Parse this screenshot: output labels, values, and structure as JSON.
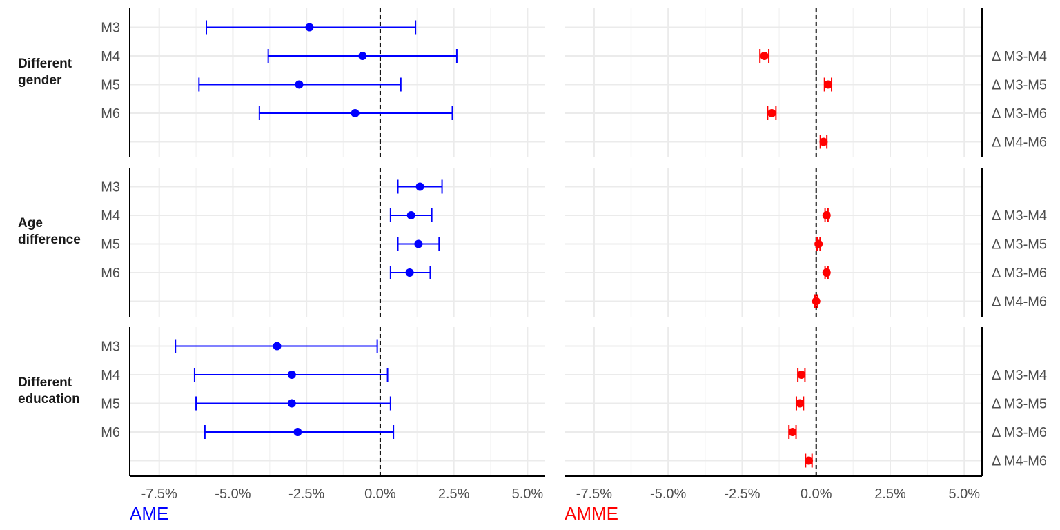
{
  "chart_data": {
    "type": "forest",
    "rows": [
      "Different gender",
      "Age difference",
      "Different education"
    ],
    "panels": [
      {
        "name": "AME",
        "color": "#0000ff",
        "title": "AME",
        "xlim": [
          -8.5,
          5.6
        ],
        "x_ticks": [
          -7.5,
          -5.0,
          -2.5,
          0.0,
          2.5,
          5.0
        ],
        "x_tick_labels": [
          "-7.5%",
          "-5.0%",
          "-2.5%",
          "0.0%",
          "2.5%",
          "5.0%"
        ],
        "y_labels": [
          "M3",
          "M4",
          "M5",
          "M6",
          ""
        ],
        "groups": [
          {
            "label": "Different gender",
            "points": [
              {
                "label": "M3",
                "est": -2.4,
                "lo": -5.9,
                "hi": 1.2
              },
              {
                "label": "M4",
                "est": -0.6,
                "lo": -3.8,
                "hi": 2.6
              },
              {
                "label": "M5",
                "est": -2.75,
                "lo": -6.15,
                "hi": 0.7
              },
              {
                "label": "M6",
                "est": -0.85,
                "lo": -4.1,
                "hi": 2.45
              }
            ]
          },
          {
            "label": "Age difference",
            "points": [
              {
                "label": "M3",
                "est": 1.35,
                "lo": 0.6,
                "hi": 2.1
              },
              {
                "label": "M4",
                "est": 1.05,
                "lo": 0.35,
                "hi": 1.75
              },
              {
                "label": "M5",
                "est": 1.3,
                "lo": 0.6,
                "hi": 2.0
              },
              {
                "label": "M6",
                "est": 1.0,
                "lo": 0.35,
                "hi": 1.7
              }
            ]
          },
          {
            "label": "Different education",
            "points": [
              {
                "label": "M3",
                "est": -3.5,
                "lo": -6.95,
                "hi": -0.1
              },
              {
                "label": "M4",
                "est": -3.0,
                "lo": -6.3,
                "hi": 0.25
              },
              {
                "label": "M5",
                "est": -3.0,
                "lo": -6.25,
                "hi": 0.35
              },
              {
                "label": "M6",
                "est": -2.8,
                "lo": -5.95,
                "hi": 0.45
              }
            ]
          }
        ]
      },
      {
        "name": "AMME",
        "color": "#ff0000",
        "title": "AMME",
        "xlim": [
          -8.5,
          5.6
        ],
        "x_ticks": [
          -7.5,
          -5.0,
          -2.5,
          0.0,
          2.5,
          5.0
        ],
        "x_tick_labels": [
          "-7.5%",
          "-5.0%",
          "-2.5%",
          "0.0%",
          "2.5%",
          "5.0%"
        ],
        "y_labels": [
          "",
          "Δ M3-M4",
          "Δ M3-M5",
          "Δ M3-M6",
          "Δ M4-M6"
        ],
        "groups": [
          {
            "label": "Different gender",
            "points": [
              {
                "label": "Δ M3-M4",
                "est": -1.75,
                "lo": -1.9,
                "hi": -1.6
              },
              {
                "label": "Δ M3-M5",
                "est": 0.4,
                "lo": 0.28,
                "hi": 0.52
              },
              {
                "label": "Δ M3-M6",
                "est": -1.5,
                "lo": -1.64,
                "hi": -1.36
              },
              {
                "label": "Δ M4-M6",
                "est": 0.25,
                "lo": 0.14,
                "hi": 0.36
              }
            ]
          },
          {
            "label": "Age difference",
            "points": [
              {
                "label": "Δ M3-M4",
                "est": 0.35,
                "lo": 0.3,
                "hi": 0.4
              },
              {
                "label": "Δ M3-M5",
                "est": 0.08,
                "lo": 0.03,
                "hi": 0.13
              },
              {
                "label": "Δ M3-M6",
                "est": 0.35,
                "lo": 0.3,
                "hi": 0.4
              },
              {
                "label": "Δ M4-M6",
                "est": 0.0,
                "lo": -0.04,
                "hi": 0.04
              }
            ]
          },
          {
            "label": "Different education",
            "points": [
              {
                "label": "Δ M3-M4",
                "est": -0.5,
                "lo": -0.62,
                "hi": -0.38
              },
              {
                "label": "Δ M3-M5",
                "est": -0.55,
                "lo": -0.67,
                "hi": -0.43
              },
              {
                "label": "Δ M3-M6",
                "est": -0.8,
                "lo": -0.92,
                "hi": -0.68
              },
              {
                "label": "Δ M4-M6",
                "est": -0.25,
                "lo": -0.36,
                "hi": -0.14
              }
            ]
          }
        ]
      }
    ],
    "reference_line": 0,
    "grid": true
  }
}
